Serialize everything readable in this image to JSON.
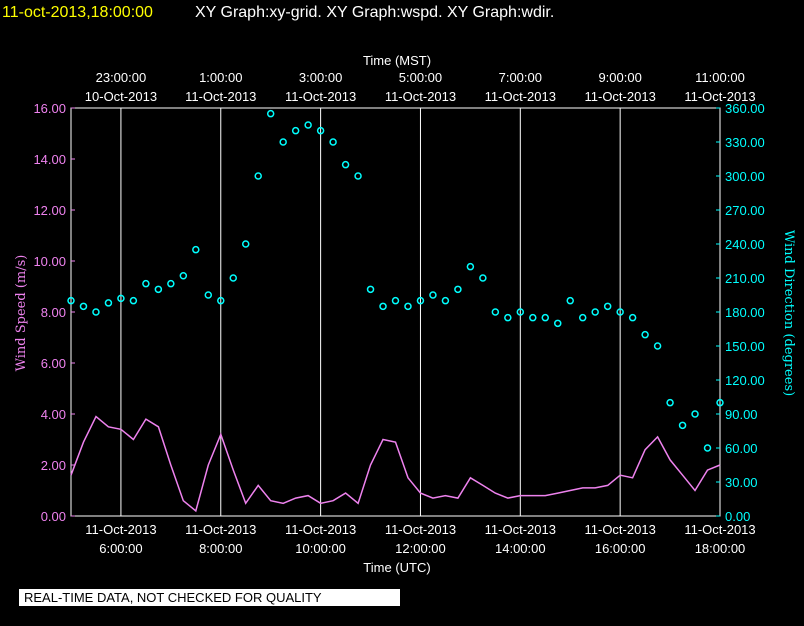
{
  "header": {
    "datetime": "11-oct-2013,18:00:00",
    "title": "XY Graph:xy-grid.  XY Graph:wspd.  XY Graph:wdir."
  },
  "disclaimer": "REAL-TIME DATA, NOT CHECKED FOR QUALITY",
  "chart_data": {
    "type": "scatter",
    "x_top_title": "Time (MST)",
    "x_bottom_title": "Time (UTC)",
    "x_unit": "hours UTC since 11-Oct-2013 00:00",
    "xlim": [
      5.0,
      18.0
    ],
    "grid": "vertical",
    "top_ticks": [
      {
        "x": 6,
        "time": "23:00:00",
        "date": "10-Oct-2013"
      },
      {
        "x": 8,
        "time": "1:00:00",
        "date": "11-Oct-2013"
      },
      {
        "x": 10,
        "time": "3:00:00",
        "date": "11-Oct-2013"
      },
      {
        "x": 12,
        "time": "5:00:00",
        "date": "11-Oct-2013"
      },
      {
        "x": 14,
        "time": "7:00:00",
        "date": "11-Oct-2013"
      },
      {
        "x": 16,
        "time": "9:00:00",
        "date": "11-Oct-2013"
      },
      {
        "x": 18,
        "time": "11:00:00",
        "date": "11-Oct-2013"
      }
    ],
    "bottom_ticks": [
      {
        "x": 6,
        "date": "11-Oct-2013",
        "time": "6:00:00"
      },
      {
        "x": 8,
        "date": "11-Oct-2013",
        "time": "8:00:00"
      },
      {
        "x": 10,
        "date": "11-Oct-2013",
        "time": "10:00:00"
      },
      {
        "x": 12,
        "date": "11-Oct-2013",
        "time": "12:00:00"
      },
      {
        "x": 14,
        "date": "11-Oct-2013",
        "time": "14:00:00"
      },
      {
        "x": 16,
        "date": "11-Oct-2013",
        "time": "16:00:00"
      },
      {
        "x": 18,
        "date": "11-Oct-2013",
        "time": "18:00:00"
      }
    ],
    "left_axis": {
      "label": "Wind Speed (m/s)",
      "ylim": [
        0,
        16
      ],
      "ticks": [
        "0.00",
        "2.00",
        "4.00",
        "6.00",
        "8.00",
        "10.00",
        "12.00",
        "14.00",
        "16.00"
      ],
      "color": "#ee82ee"
    },
    "right_axis": {
      "label": "Wind Direction (degrees)",
      "ylim": [
        0,
        360
      ],
      "ticks": [
        "0.00",
        "30.00",
        "60.00",
        "90.00",
        "120.00",
        "150.00",
        "180.00",
        "210.00",
        "240.00",
        "270.00",
        "300.00",
        "330.00",
        "360.00"
      ],
      "color": "#00ffff"
    },
    "series": [
      {
        "name": "wspd",
        "axis": "left",
        "color": "#ee82ee",
        "style": "line",
        "x": [
          5.0,
          5.25,
          5.5,
          5.75,
          6.0,
          6.25,
          6.5,
          6.75,
          7.0,
          7.25,
          7.5,
          7.75,
          8.0,
          8.25,
          8.5,
          8.75,
          9.0,
          9.25,
          9.5,
          9.75,
          10.0,
          10.25,
          10.5,
          10.75,
          11.0,
          11.25,
          11.5,
          11.75,
          12.0,
          12.25,
          12.5,
          12.75,
          13.0,
          13.25,
          13.5,
          13.75,
          14.0,
          14.25,
          14.5,
          14.75,
          15.0,
          15.25,
          15.5,
          15.75,
          16.0,
          16.25,
          16.5,
          16.75,
          17.0,
          17.25,
          17.5,
          17.75,
          18.0
        ],
        "y": [
          1.6,
          2.9,
          3.9,
          3.5,
          3.4,
          3.0,
          3.8,
          3.5,
          2.0,
          0.6,
          0.2,
          2.0,
          3.2,
          1.8,
          0.5,
          1.2,
          0.6,
          0.5,
          0.7,
          0.8,
          0.5,
          0.6,
          0.9,
          0.5,
          2.0,
          3.0,
          2.9,
          1.5,
          0.9,
          0.7,
          0.8,
          0.7,
          1.5,
          1.2,
          0.9,
          0.7,
          0.8,
          0.8,
          0.8,
          0.9,
          1.0,
          1.1,
          1.1,
          1.2,
          1.6,
          1.5,
          2.6,
          3.1,
          2.2,
          1.6,
          1.0,
          1.8,
          2.0
        ]
      },
      {
        "name": "wdir",
        "axis": "right",
        "color": "#00ffff",
        "style": "marker",
        "x": [
          5.0,
          5.25,
          5.5,
          5.75,
          6.0,
          6.25,
          6.5,
          6.75,
          7.0,
          7.25,
          7.5,
          7.75,
          8.0,
          8.25,
          8.5,
          8.75,
          9.0,
          9.25,
          9.5,
          9.75,
          10.0,
          10.25,
          10.5,
          10.75,
          11.0,
          11.25,
          11.5,
          11.75,
          12.0,
          12.25,
          12.5,
          12.75,
          13.0,
          13.25,
          13.5,
          13.75,
          14.0,
          14.25,
          14.5,
          14.75,
          15.0,
          15.25,
          15.5,
          15.75,
          16.0,
          16.25,
          16.5,
          16.75,
          17.0,
          17.25,
          17.5,
          17.75,
          18.0
        ],
        "y": [
          190,
          185,
          180,
          188,
          192,
          190,
          205,
          200,
          205,
          212,
          235,
          195,
          190,
          210,
          240,
          300,
          355,
          330,
          340,
          345,
          340,
          330,
          310,
          300,
          200,
          185,
          190,
          185,
          190,
          195,
          190,
          200,
          220,
          210,
          180,
          175,
          180,
          175,
          175,
          170,
          190,
          175,
          180,
          185,
          180,
          175,
          160,
          150,
          100,
          80,
          90,
          60,
          100
        ]
      }
    ]
  }
}
